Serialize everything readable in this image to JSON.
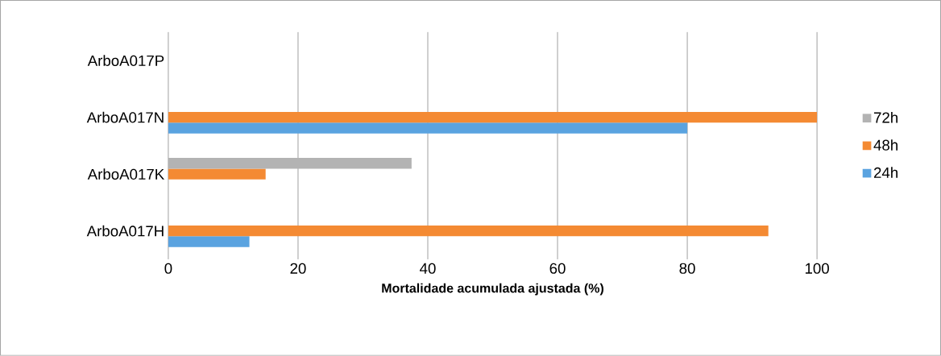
{
  "chart_data": {
    "type": "bar",
    "orientation": "horizontal",
    "xlabel": "Mortalidade acumulada ajustada (%)",
    "categories": [
      "ArboA017P",
      "ArboA017N",
      "ArboA017K",
      "ArboA017H"
    ],
    "series": [
      {
        "name": "24h",
        "color": "#5aa3e0",
        "values": [
          0,
          80,
          0,
          12.5
        ]
      },
      {
        "name": "48h",
        "color": "#f48a33",
        "values": [
          0,
          100,
          15,
          92.5
        ]
      },
      {
        "name": "72h",
        "color": "#b3b3b3",
        "values": [
          0,
          0,
          37.5,
          0
        ]
      }
    ],
    "xlim": [
      0,
      100
    ],
    "xticks": [
      0,
      20,
      40,
      60,
      80,
      100
    ],
    "grid": "x",
    "legend": "right"
  }
}
